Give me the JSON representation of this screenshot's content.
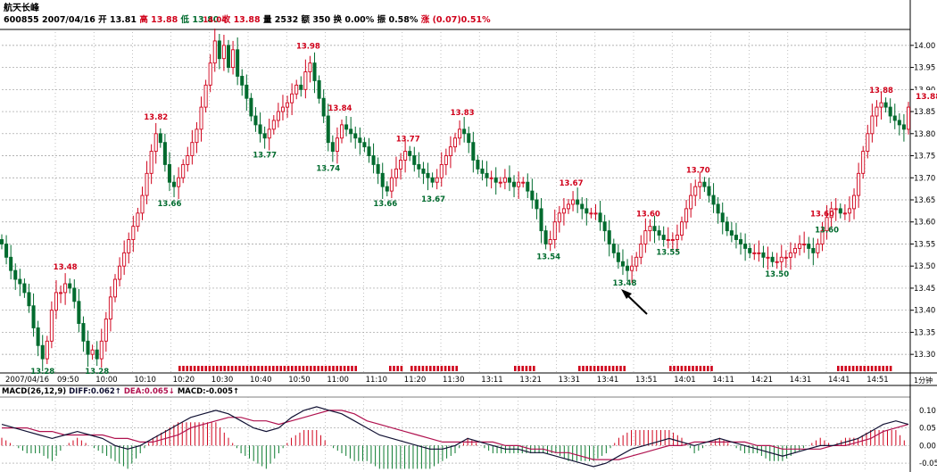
{
  "header": {
    "title": "航天长峰",
    "code": "600855",
    "date": "2007/04/16",
    "open_label": "开",
    "open": "13.81",
    "high_label": "高",
    "high": "13.88",
    "low_label": "低",
    "low": "13.80",
    "close_label": "收",
    "close": "13.88",
    "vol_label": "量",
    "vol": "2532",
    "amount_label": "额",
    "amount": "350",
    "change_pct_label": "换",
    "change_pct": "0.00%",
    "amp_label": "振",
    "amp": "0.58%",
    "updown_label": "涨",
    "updown": "(0.07)0.51%"
  },
  "colors": {
    "up": "#d0021b",
    "down": "#006b2e",
    "grid": "#9a9a9a",
    "diff": "#111133",
    "dea": "#b0124f",
    "hist_up": "#d0021b",
    "hist_down": "#0a7a2e"
  },
  "chart_data": [
    {
      "type": "candlestick",
      "x_ticks": [
        "2007/04/16",
        "09:50",
        "10:00",
        "10:10",
        "10:20",
        "10:30",
        "10:40",
        "10:50",
        "11:00",
        "11:10",
        "11:20",
        "11:30",
        "13:11",
        "13:21",
        "13:31",
        "13:41",
        "13:51",
        "14:01",
        "14:11",
        "14:21",
        "14:31",
        "14:41",
        "14:51"
      ],
      "x_unit_label": "1分钟",
      "y_ticks": [
        "14.00",
        "13.95",
        "13.90",
        "13.85",
        "13.80",
        "13.75",
        "13.70",
        "13.65",
        "13.60",
        "13.55",
        "13.50",
        "13.45",
        "13.40",
        "13.35",
        "13.30"
      ],
      "ylim": [
        13.27,
        14.03
      ],
      "last_price": "13.88",
      "annotations": [
        {
          "text": "13.28",
          "x": 0.045,
          "y": 13.28,
          "kind": "low"
        },
        {
          "text": "13.48",
          "x": 0.07,
          "y": 13.48,
          "kind": "high"
        },
        {
          "text": "13.28",
          "x": 0.105,
          "y": 13.28,
          "kind": "low"
        },
        {
          "text": "13.82",
          "x": 0.17,
          "y": 13.82,
          "kind": "high"
        },
        {
          "text": "13.66",
          "x": 0.185,
          "y": 13.66,
          "kind": "low"
        },
        {
          "text": "14.04",
          "x": 0.235,
          "y": 14.04,
          "kind": "high"
        },
        {
          "text": "13.77",
          "x": 0.29,
          "y": 13.77,
          "kind": "low"
        },
        {
          "text": "13.98",
          "x": 0.338,
          "y": 13.98,
          "kind": "high"
        },
        {
          "text": "13.74",
          "x": 0.36,
          "y": 13.74,
          "kind": "low"
        },
        {
          "text": "13.84",
          "x": 0.373,
          "y": 13.84,
          "kind": "high"
        },
        {
          "text": "13.66",
          "x": 0.423,
          "y": 13.66,
          "kind": "low"
        },
        {
          "text": "13.77",
          "x": 0.448,
          "y": 13.77,
          "kind": "high"
        },
        {
          "text": "13.67",
          "x": 0.476,
          "y": 13.67,
          "kind": "low"
        },
        {
          "text": "13.83",
          "x": 0.508,
          "y": 13.83,
          "kind": "high"
        },
        {
          "text": "13.54",
          "x": 0.603,
          "y": 13.54,
          "kind": "low"
        },
        {
          "text": "13.67",
          "x": 0.628,
          "y": 13.67,
          "kind": "high"
        },
        {
          "text": "13.48",
          "x": 0.687,
          "y": 13.48,
          "kind": "low"
        },
        {
          "text": "13.60",
          "x": 0.713,
          "y": 13.6,
          "kind": "high"
        },
        {
          "text": "13.55",
          "x": 0.735,
          "y": 13.55,
          "kind": "low"
        },
        {
          "text": "13.70",
          "x": 0.768,
          "y": 13.7,
          "kind": "high"
        },
        {
          "text": "13.50",
          "x": 0.855,
          "y": 13.5,
          "kind": "low"
        },
        {
          "text": "13.60",
          "x": 0.905,
          "y": 13.6,
          "kind": "high"
        },
        {
          "text": "13.60",
          "x": 0.91,
          "y": 13.6,
          "kind": "low"
        },
        {
          "text": "13.88",
          "x": 0.97,
          "y": 13.88,
          "kind": "high"
        }
      ],
      "series": [
        {
          "x": 0.0,
          "y": 13.55
        },
        {
          "x": 0.005,
          "y": 13.52
        },
        {
          "x": 0.01,
          "y": 13.49
        },
        {
          "x": 0.015,
          "y": 13.47
        },
        {
          "x": 0.02,
          "y": 13.46
        },
        {
          "x": 0.025,
          "y": 13.44
        },
        {
          "x": 0.03,
          "y": 13.41
        },
        {
          "x": 0.035,
          "y": 13.36
        },
        {
          "x": 0.04,
          "y": 13.32
        },
        {
          "x": 0.045,
          "y": 13.29
        },
        {
          "x": 0.05,
          "y": 13.33
        },
        {
          "x": 0.055,
          "y": 13.4
        },
        {
          "x": 0.06,
          "y": 13.44
        },
        {
          "x": 0.065,
          "y": 13.44
        },
        {
          "x": 0.07,
          "y": 13.46
        },
        {
          "x": 0.075,
          "y": 13.45
        },
        {
          "x": 0.08,
          "y": 13.42
        },
        {
          "x": 0.085,
          "y": 13.37
        },
        {
          "x": 0.09,
          "y": 13.33
        },
        {
          "x": 0.095,
          "y": 13.3
        },
        {
          "x": 0.1,
          "y": 13.31
        },
        {
          "x": 0.105,
          "y": 13.29
        },
        {
          "x": 0.11,
          "y": 13.33
        },
        {
          "x": 0.115,
          "y": 13.38
        },
        {
          "x": 0.12,
          "y": 13.43
        },
        {
          "x": 0.125,
          "y": 13.47
        },
        {
          "x": 0.13,
          "y": 13.5
        },
        {
          "x": 0.135,
          "y": 13.53
        },
        {
          "x": 0.14,
          "y": 13.56
        },
        {
          "x": 0.145,
          "y": 13.59
        },
        {
          "x": 0.15,
          "y": 13.62
        },
        {
          "x": 0.155,
          "y": 13.66
        },
        {
          "x": 0.16,
          "y": 13.71
        },
        {
          "x": 0.165,
          "y": 13.76
        },
        {
          "x": 0.17,
          "y": 13.8
        },
        {
          "x": 0.175,
          "y": 13.78
        },
        {
          "x": 0.18,
          "y": 13.73
        },
        {
          "x": 0.185,
          "y": 13.69
        },
        {
          "x": 0.19,
          "y": 13.68
        },
        {
          "x": 0.195,
          "y": 13.7
        },
        {
          "x": 0.2,
          "y": 13.73
        },
        {
          "x": 0.205,
          "y": 13.75
        },
        {
          "x": 0.21,
          "y": 13.78
        },
        {
          "x": 0.215,
          "y": 13.81
        },
        {
          "x": 0.22,
          "y": 13.86
        },
        {
          "x": 0.225,
          "y": 13.91
        },
        {
          "x": 0.23,
          "y": 13.96
        },
        {
          "x": 0.235,
          "y": 14.01
        },
        {
          "x": 0.24,
          "y": 13.97
        },
        {
          "x": 0.245,
          "y": 14.0
        },
        {
          "x": 0.25,
          "y": 13.95
        },
        {
          "x": 0.255,
          "y": 13.99
        },
        {
          "x": 0.26,
          "y": 13.93
        },
        {
          "x": 0.265,
          "y": 13.91
        },
        {
          "x": 0.27,
          "y": 13.88
        },
        {
          "x": 0.275,
          "y": 13.84
        },
        {
          "x": 0.28,
          "y": 13.82
        },
        {
          "x": 0.285,
          "y": 13.8
        },
        {
          "x": 0.29,
          "y": 13.79
        },
        {
          "x": 0.295,
          "y": 13.81
        },
        {
          "x": 0.3,
          "y": 13.83
        },
        {
          "x": 0.305,
          "y": 13.85
        },
        {
          "x": 0.31,
          "y": 13.86
        },
        {
          "x": 0.315,
          "y": 13.87
        },
        {
          "x": 0.32,
          "y": 13.89
        },
        {
          "x": 0.325,
          "y": 13.91
        },
        {
          "x": 0.33,
          "y": 13.9
        },
        {
          "x": 0.335,
          "y": 13.94
        },
        {
          "x": 0.34,
          "y": 13.96
        },
        {
          "x": 0.345,
          "y": 13.92
        },
        {
          "x": 0.35,
          "y": 13.88
        },
        {
          "x": 0.355,
          "y": 13.84
        },
        {
          "x": 0.36,
          "y": 13.78
        },
        {
          "x": 0.365,
          "y": 13.76
        },
        {
          "x": 0.37,
          "y": 13.79
        },
        {
          "x": 0.375,
          "y": 13.82
        },
        {
          "x": 0.38,
          "y": 13.81
        },
        {
          "x": 0.385,
          "y": 13.8
        },
        {
          "x": 0.39,
          "y": 13.79
        },
        {
          "x": 0.395,
          "y": 13.78
        },
        {
          "x": 0.4,
          "y": 13.77
        },
        {
          "x": 0.405,
          "y": 13.75
        },
        {
          "x": 0.41,
          "y": 13.73
        },
        {
          "x": 0.415,
          "y": 13.71
        },
        {
          "x": 0.42,
          "y": 13.68
        },
        {
          "x": 0.425,
          "y": 13.67
        },
        {
          "x": 0.43,
          "y": 13.7
        },
        {
          "x": 0.435,
          "y": 13.72
        },
        {
          "x": 0.44,
          "y": 13.74
        },
        {
          "x": 0.445,
          "y": 13.76
        },
        {
          "x": 0.45,
          "y": 13.75
        },
        {
          "x": 0.455,
          "y": 13.73
        },
        {
          "x": 0.46,
          "y": 13.72
        },
        {
          "x": 0.465,
          "y": 13.71
        },
        {
          "x": 0.47,
          "y": 13.7
        },
        {
          "x": 0.475,
          "y": 13.69
        },
        {
          "x": 0.48,
          "y": 13.7
        },
        {
          "x": 0.485,
          "y": 13.73
        },
        {
          "x": 0.49,
          "y": 13.75
        },
        {
          "x": 0.495,
          "y": 13.77
        },
        {
          "x": 0.5,
          "y": 13.79
        },
        {
          "x": 0.505,
          "y": 13.81
        },
        {
          "x": 0.51,
          "y": 13.8
        },
        {
          "x": 0.515,
          "y": 13.78
        },
        {
          "x": 0.52,
          "y": 13.74
        },
        {
          "x": 0.525,
          "y": 13.72
        },
        {
          "x": 0.53,
          "y": 13.71
        },
        {
          "x": 0.535,
          "y": 13.7
        },
        {
          "x": 0.54,
          "y": 13.7
        },
        {
          "x": 0.545,
          "y": 13.69
        },
        {
          "x": 0.55,
          "y": 13.69
        },
        {
          "x": 0.555,
          "y": 13.7
        },
        {
          "x": 0.56,
          "y": 13.69
        },
        {
          "x": 0.565,
          "y": 13.68
        },
        {
          "x": 0.57,
          "y": 13.69
        },
        {
          "x": 0.575,
          "y": 13.69
        },
        {
          "x": 0.58,
          "y": 13.67
        },
        {
          "x": 0.585,
          "y": 13.65
        },
        {
          "x": 0.59,
          "y": 13.63
        },
        {
          "x": 0.595,
          "y": 13.58
        },
        {
          "x": 0.6,
          "y": 13.55
        },
        {
          "x": 0.605,
          "y": 13.56
        },
        {
          "x": 0.61,
          "y": 13.6
        },
        {
          "x": 0.615,
          "y": 13.62
        },
        {
          "x": 0.62,
          "y": 13.63
        },
        {
          "x": 0.625,
          "y": 13.64
        },
        {
          "x": 0.63,
          "y": 13.65
        },
        {
          "x": 0.635,
          "y": 13.64
        },
        {
          "x": 0.64,
          "y": 13.63
        },
        {
          "x": 0.645,
          "y": 13.62
        },
        {
          "x": 0.65,
          "y": 13.62
        },
        {
          "x": 0.655,
          "y": 13.62
        },
        {
          "x": 0.66,
          "y": 13.6
        },
        {
          "x": 0.665,
          "y": 13.58
        },
        {
          "x": 0.67,
          "y": 13.55
        },
        {
          "x": 0.675,
          "y": 13.53
        },
        {
          "x": 0.68,
          "y": 13.51
        },
        {
          "x": 0.685,
          "y": 13.5
        },
        {
          "x": 0.69,
          "y": 13.49
        },
        {
          "x": 0.695,
          "y": 13.5
        },
        {
          "x": 0.7,
          "y": 13.52
        },
        {
          "x": 0.705,
          "y": 13.55
        },
        {
          "x": 0.71,
          "y": 13.58
        },
        {
          "x": 0.715,
          "y": 13.59
        },
        {
          "x": 0.72,
          "y": 13.58
        },
        {
          "x": 0.725,
          "y": 13.57
        },
        {
          "x": 0.73,
          "y": 13.56
        },
        {
          "x": 0.735,
          "y": 13.56
        },
        {
          "x": 0.74,
          "y": 13.56
        },
        {
          "x": 0.745,
          "y": 13.57
        },
        {
          "x": 0.75,
          "y": 13.6
        },
        {
          "x": 0.755,
          "y": 13.63
        },
        {
          "x": 0.76,
          "y": 13.66
        },
        {
          "x": 0.765,
          "y": 13.68
        },
        {
          "x": 0.77,
          "y": 13.69
        },
        {
          "x": 0.775,
          "y": 13.68
        },
        {
          "x": 0.78,
          "y": 13.66
        },
        {
          "x": 0.785,
          "y": 13.64
        },
        {
          "x": 0.79,
          "y": 13.62
        },
        {
          "x": 0.795,
          "y": 13.6
        },
        {
          "x": 0.8,
          "y": 13.58
        },
        {
          "x": 0.805,
          "y": 13.57
        },
        {
          "x": 0.81,
          "y": 13.56
        },
        {
          "x": 0.815,
          "y": 13.55
        },
        {
          "x": 0.82,
          "y": 13.54
        },
        {
          "x": 0.825,
          "y": 13.53
        },
        {
          "x": 0.83,
          "y": 13.53
        },
        {
          "x": 0.835,
          "y": 13.53
        },
        {
          "x": 0.84,
          "y": 13.52
        },
        {
          "x": 0.845,
          "y": 13.52
        },
        {
          "x": 0.85,
          "y": 13.51
        },
        {
          "x": 0.855,
          "y": 13.51
        },
        {
          "x": 0.86,
          "y": 13.52
        },
        {
          "x": 0.865,
          "y": 13.52
        },
        {
          "x": 0.87,
          "y": 13.53
        },
        {
          "x": 0.875,
          "y": 13.54
        },
        {
          "x": 0.88,
          "y": 13.55
        },
        {
          "x": 0.885,
          "y": 13.55
        },
        {
          "x": 0.89,
          "y": 13.54
        },
        {
          "x": 0.895,
          "y": 13.53
        },
        {
          "x": 0.9,
          "y": 13.55
        },
        {
          "x": 0.905,
          "y": 13.58
        },
        {
          "x": 0.91,
          "y": 13.61
        },
        {
          "x": 0.915,
          "y": 13.63
        },
        {
          "x": 0.92,
          "y": 13.63
        },
        {
          "x": 0.925,
          "y": 13.62
        },
        {
          "x": 0.93,
          "y": 13.62
        },
        {
          "x": 0.935,
          "y": 13.63
        },
        {
          "x": 0.94,
          "y": 13.66
        },
        {
          "x": 0.945,
          "y": 13.71
        },
        {
          "x": 0.95,
          "y": 13.76
        },
        {
          "x": 0.955,
          "y": 13.8
        },
        {
          "x": 0.96,
          "y": 13.84
        },
        {
          "x": 0.965,
          "y": 13.86
        },
        {
          "x": 0.97,
          "y": 13.87
        },
        {
          "x": 0.975,
          "y": 13.86
        },
        {
          "x": 0.98,
          "y": 13.84
        },
        {
          "x": 0.985,
          "y": 13.83
        },
        {
          "x": 0.99,
          "y": 13.82
        },
        {
          "x": 0.995,
          "y": 13.81
        },
        {
          "x": 1.0,
          "y": 13.86
        }
      ]
    },
    {
      "type": "macd",
      "label": "MACD(26,12,9)",
      "diff_label": "DIFF:0.062↑",
      "dea_label": "DEA:0.065↓",
      "macd_label": "MACD:-0.005↑",
      "y_ticks": [
        "0.10",
        "0.05",
        "0.00",
        "-0.05"
      ],
      "ylim": [
        -0.07,
        0.13
      ],
      "diff": [
        0.06,
        0.05,
        0.04,
        0.03,
        0.02,
        0.03,
        0.04,
        0.03,
        0.02,
        0.0,
        -0.01,
        0.0,
        0.02,
        0.04,
        0.06,
        0.08,
        0.09,
        0.1,
        0.09,
        0.07,
        0.05,
        0.04,
        0.05,
        0.08,
        0.1,
        0.11,
        0.1,
        0.09,
        0.07,
        0.05,
        0.03,
        0.02,
        0.01,
        0.0,
        -0.01,
        -0.01,
        0.0,
        0.02,
        0.01,
        0.0,
        -0.01,
        -0.01,
        -0.02,
        -0.02,
        -0.03,
        -0.04,
        -0.05,
        -0.06,
        -0.05,
        -0.03,
        -0.01,
        0.0,
        0.01,
        0.02,
        0.01,
        0.0,
        0.01,
        0.02,
        0.01,
        0.0,
        -0.01,
        -0.02,
        -0.03,
        -0.02,
        -0.01,
        0.0,
        0.0,
        0.01,
        0.02,
        0.04,
        0.06,
        0.07,
        0.06
      ],
      "dea": [
        0.05,
        0.05,
        0.05,
        0.04,
        0.04,
        0.03,
        0.03,
        0.03,
        0.03,
        0.02,
        0.02,
        0.01,
        0.01,
        0.02,
        0.03,
        0.05,
        0.06,
        0.07,
        0.08,
        0.08,
        0.07,
        0.07,
        0.06,
        0.07,
        0.08,
        0.09,
        0.1,
        0.1,
        0.09,
        0.07,
        0.06,
        0.05,
        0.04,
        0.03,
        0.02,
        0.01,
        0.01,
        0.01,
        0.01,
        0.01,
        0.0,
        0.0,
        -0.01,
        -0.01,
        -0.02,
        -0.02,
        -0.03,
        -0.04,
        -0.04,
        -0.04,
        -0.03,
        -0.02,
        -0.01,
        0.0,
        0.0,
        0.01,
        0.01,
        0.01,
        0.01,
        0.01,
        0.0,
        0.0,
        -0.01,
        -0.01,
        -0.01,
        -0.01,
        0.0,
        0.0,
        0.01,
        0.02,
        0.04,
        0.05,
        0.06
      ]
    }
  ]
}
